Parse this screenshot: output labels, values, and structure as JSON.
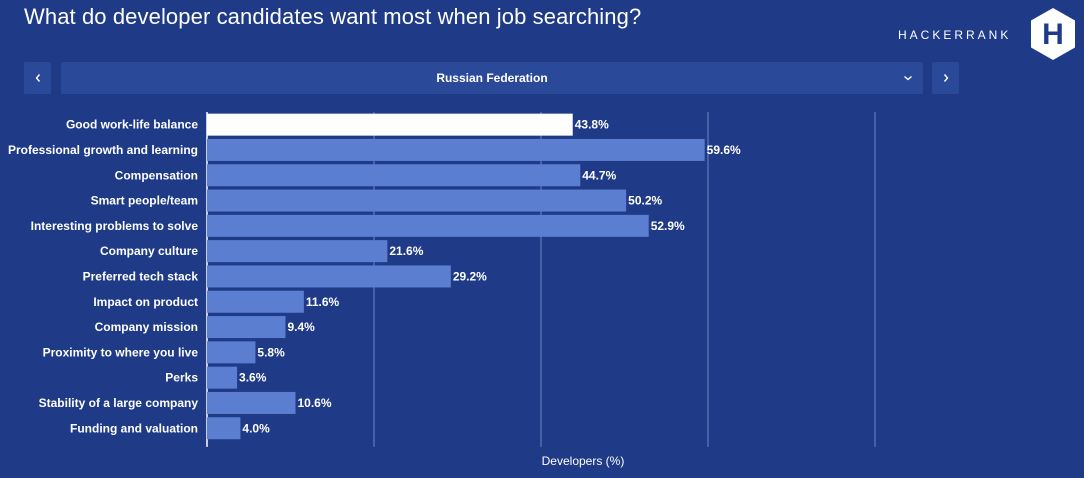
{
  "header": {
    "title": "What do developer candidates want most when job searching?",
    "brand": "HACKERRANK",
    "logo_letter": "H"
  },
  "selector": {
    "value": "Russian Federation",
    "prev_icon": "chevron-left-icon",
    "next_icon": "chevron-right-icon",
    "dropdown_icon": "chevron-down-icon"
  },
  "chart_data": {
    "type": "bar",
    "orientation": "horizontal",
    "categories": [
      "Good work-life balance",
      "Professional growth and learning",
      "Compensation",
      "Smart people/team",
      "Interesting problems to solve",
      "Company culture",
      "Preferred tech stack",
      "Impact on product",
      "Company mission",
      "Proximity to where you live",
      "Perks",
      "Stability of a large company",
      "Funding and valuation"
    ],
    "values": [
      43.8,
      59.6,
      44.7,
      50.2,
      52.9,
      21.6,
      29.2,
      11.6,
      9.4,
      5.8,
      3.6,
      10.6,
      4.0
    ],
    "value_labels": [
      "43.8%",
      "59.6%",
      "44.7%",
      "50.2%",
      "52.9%",
      "21.6%",
      "29.2%",
      "11.6%",
      "9.4%",
      "5.8%",
      "3.6%",
      "10.6%",
      "4.0%"
    ],
    "highlight_index": 0,
    "xlabel": "Developers (%)",
    "xlim": [
      0,
      80
    ],
    "gridlines": [
      20,
      40,
      60,
      80
    ],
    "grid": true,
    "colors": {
      "bar": "#5b7ed1",
      "highlight": "#ffffff",
      "background": "#1f3b87",
      "grid": "#6f86c4"
    }
  }
}
